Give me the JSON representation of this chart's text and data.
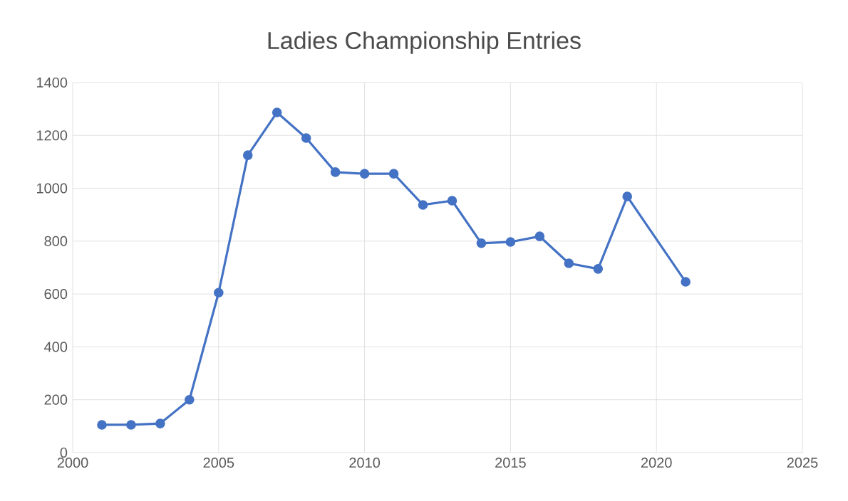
{
  "chart_data": {
    "type": "line",
    "title": "Ladies Championship Entries",
    "x": [
      2001,
      2002,
      2003,
      2004,
      2005,
      2006,
      2007,
      2008,
      2009,
      2010,
      2011,
      2012,
      2013,
      2014,
      2015,
      2016,
      2017,
      2018,
      2019,
      2021
    ],
    "series": [
      {
        "color": "#4472c4",
        "values": [
          105,
          105,
          110,
          200,
          605,
          1125,
          1287,
          1190,
          1061,
          1055,
          1055,
          937,
          953,
          792,
          797,
          818,
          716,
          695,
          969,
          646
        ]
      }
    ],
    "xlim": [
      2000,
      2025
    ],
    "xticks": [
      2000,
      2005,
      2010,
      2015,
      2020,
      2025
    ],
    "ylim": [
      0,
      1400
    ],
    "yticks": [
      0,
      200,
      400,
      600,
      800,
      1000,
      1200,
      1400
    ],
    "grid": true,
    "marker": "circle",
    "line_style": "solid"
  }
}
